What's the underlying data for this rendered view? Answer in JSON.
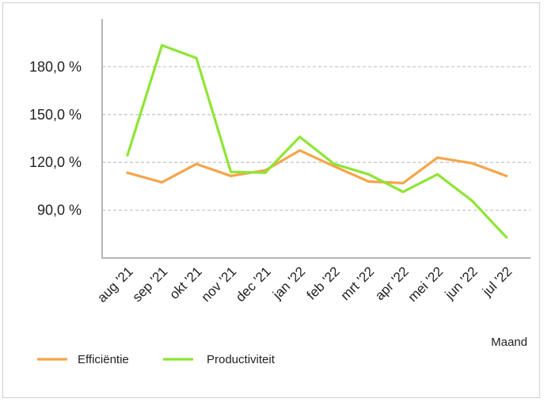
{
  "chart_data": {
    "type": "line",
    "title": "",
    "xlabel": "Maand",
    "ylabel": "",
    "categories": [
      "aug '21",
      "sep '21",
      "okt '21",
      "nov '21",
      "dec '21",
      "jan '22",
      "feb '22",
      "mrt '22",
      "apr '22",
      "mei '22",
      "jun '22",
      "jul '22"
    ],
    "ylim": [
      60,
      210
    ],
    "yticks": [
      90,
      120,
      150,
      180
    ],
    "ytick_labels": [
      "90,0 %",
      "120,0 %",
      "150,0 %",
      "180,0 %"
    ],
    "grid": "horizontal dashed",
    "legend_position": "bottom-left",
    "series": [
      {
        "name": "Efficiëntie",
        "color": "#f5a54a",
        "values": [
          113.5,
          107.5,
          119,
          111.5,
          115,
          127.5,
          117.5,
          108,
          107,
          123,
          119.5,
          111.5
        ]
      },
      {
        "name": "Productiviteit",
        "color": "#8ee535",
        "values": [
          124.5,
          193.5,
          185.5,
          114,
          113.5,
          136,
          119,
          112.5,
          101.5,
          112.5,
          96,
          73
        ]
      }
    ]
  }
}
